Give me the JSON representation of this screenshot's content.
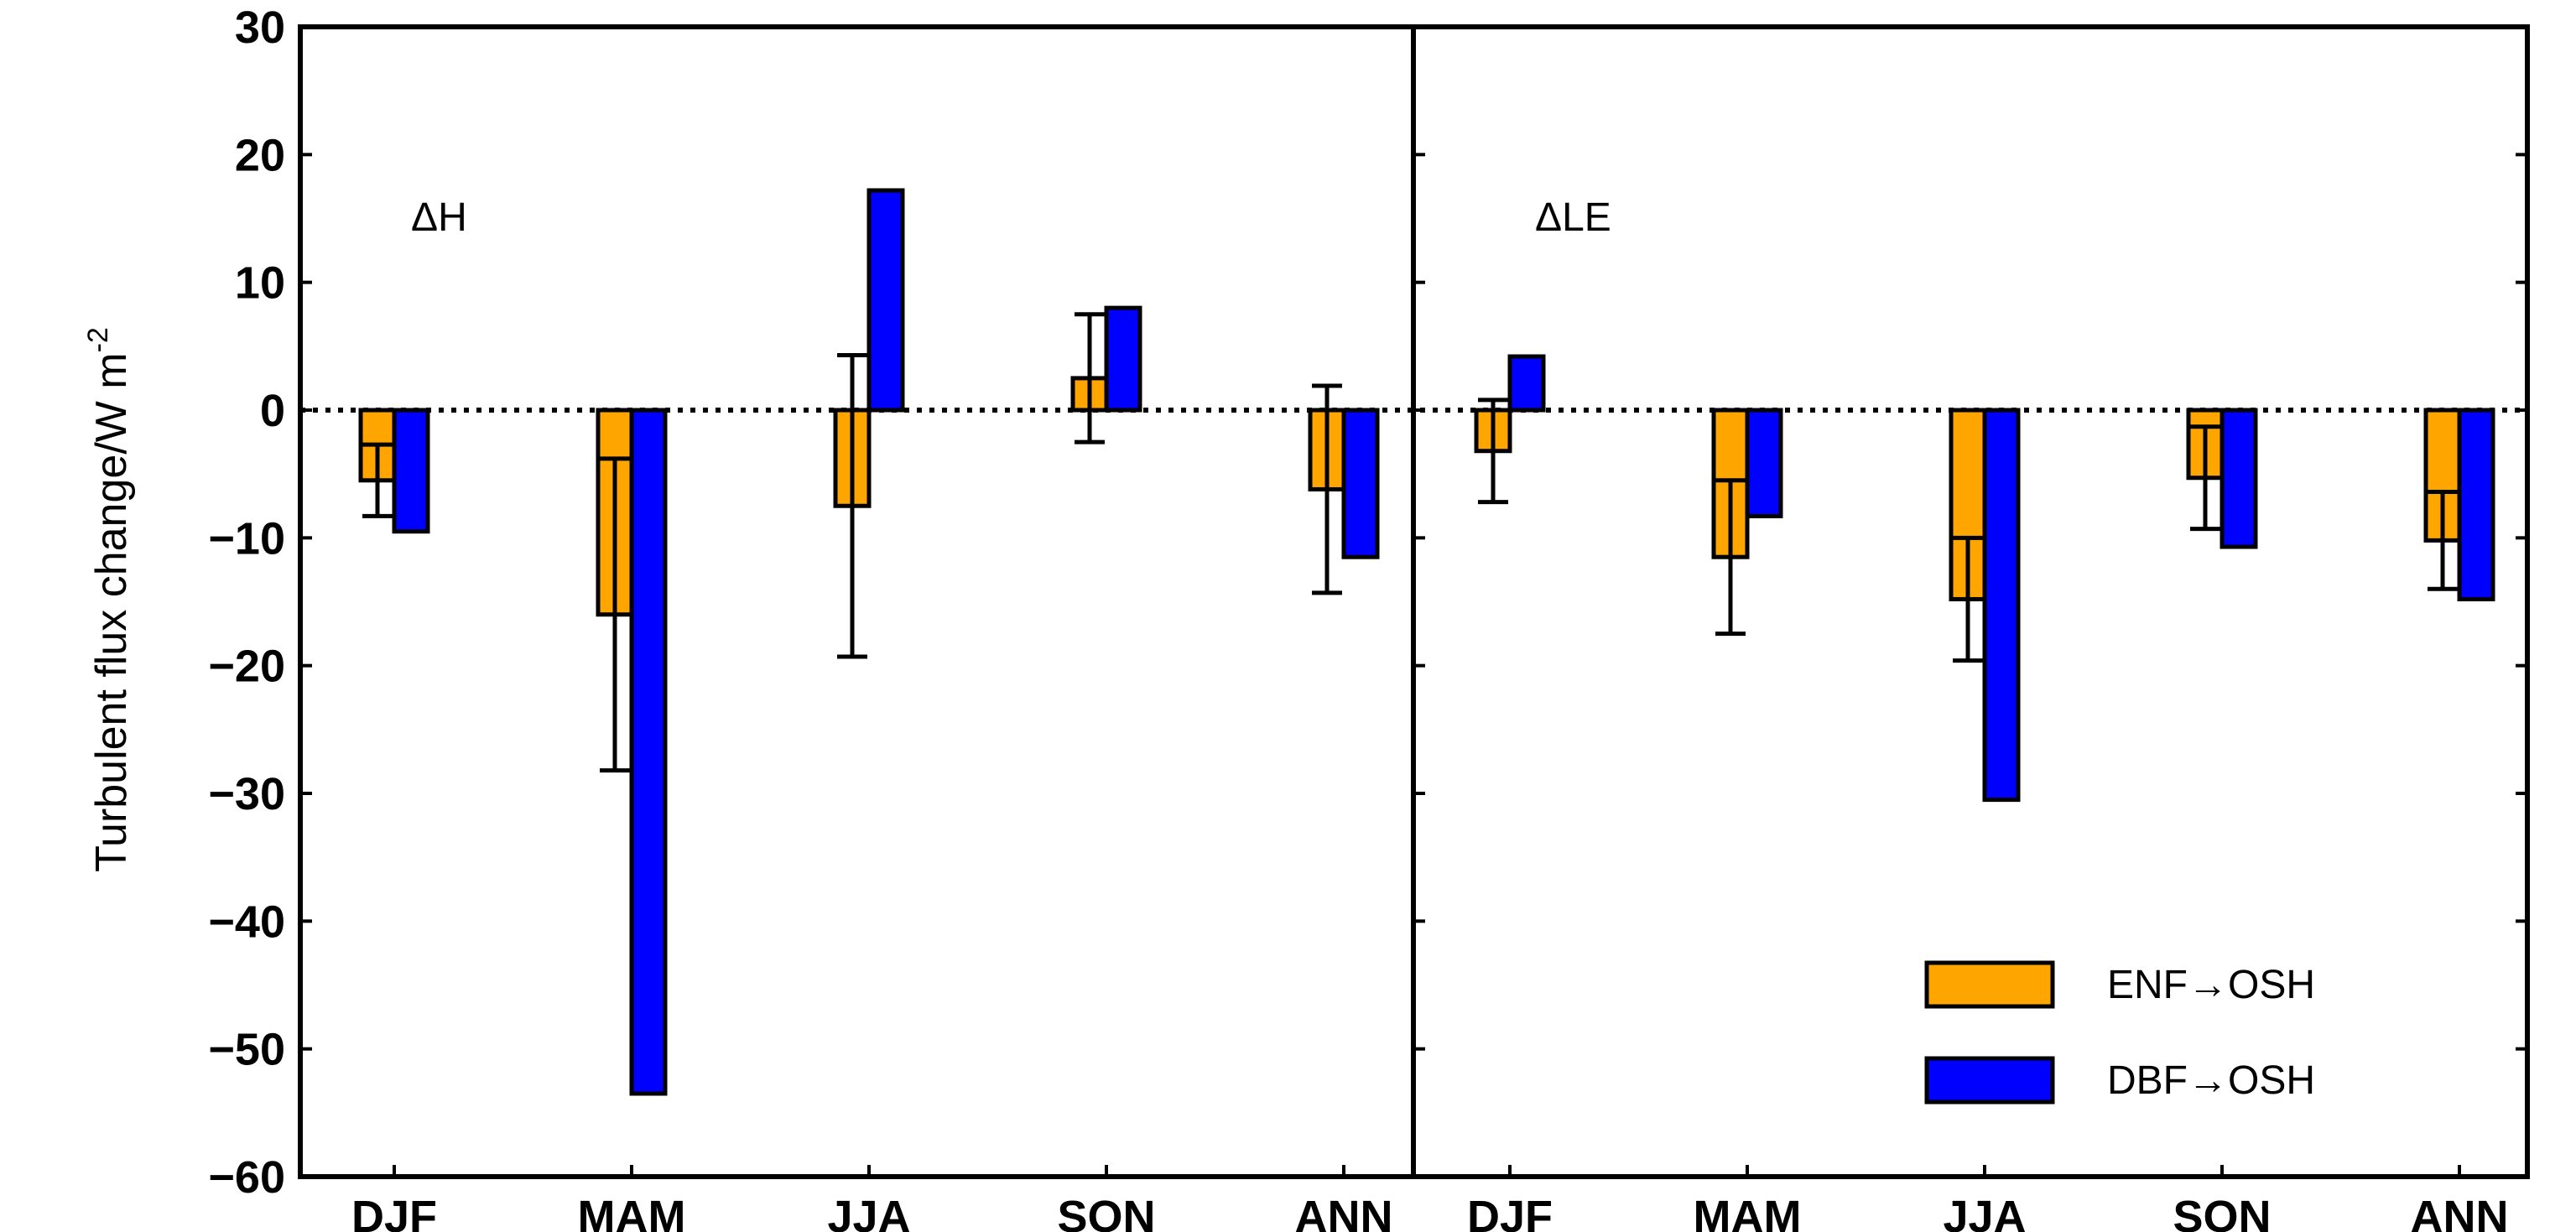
{
  "chart_data": {
    "type": "bar",
    "title": "",
    "xlabel": "",
    "ylabel": "Turbulent flux change/W m",
    "ylabel_superscript": "-2",
    "ylim": [
      -60,
      30
    ],
    "yticks": [
      "30",
      "20",
      "10",
      "0",
      "−10",
      "−20",
      "−30",
      "−40",
      "−50",
      "−60"
    ],
    "ytick_values": [
      30,
      20,
      10,
      0,
      -10,
      -20,
      -30,
      -40,
      -50,
      -60
    ],
    "categories": [
      "DJF",
      "MAM",
      "JJA",
      "SON",
      "ANN"
    ],
    "legend": {
      "position": "bottom-right"
    },
    "series_style": [
      {
        "name": "ENF→OSH",
        "color": "#FFA500"
      },
      {
        "name": "DBF→OSH",
        "color": "#0000FF"
      }
    ],
    "panels": [
      {
        "label": "ΔH",
        "series": [
          {
            "name": "ENF→OSH",
            "values": [
              -5.5,
              -16,
              -7.5,
              2.5,
              -6.2
            ],
            "error": [
              2.8,
              12.2,
              11.8,
              5.0,
              8.1
            ]
          },
          {
            "name": "DBF→OSH",
            "values": [
              -9.5,
              -53.5,
              17.2,
              8.0,
              -11.5
            ],
            "error": [
              0,
              0,
              0,
              0,
              0
            ]
          }
        ]
      },
      {
        "label": "ΔLE",
        "series": [
          {
            "name": "ENF→OSH",
            "values": [
              -3.2,
              -11.5,
              -14.8,
              -5.3,
              -10.2
            ],
            "error": [
              4.0,
              6.0,
              4.8,
              4.0,
              3.8
            ]
          },
          {
            "name": "DBF→OSH",
            "values": [
              4.2,
              -8.3,
              -30.5,
              -10.7,
              -14.8
            ],
            "error": [
              0,
              0,
              0,
              0,
              0
            ]
          }
        ]
      }
    ]
  }
}
